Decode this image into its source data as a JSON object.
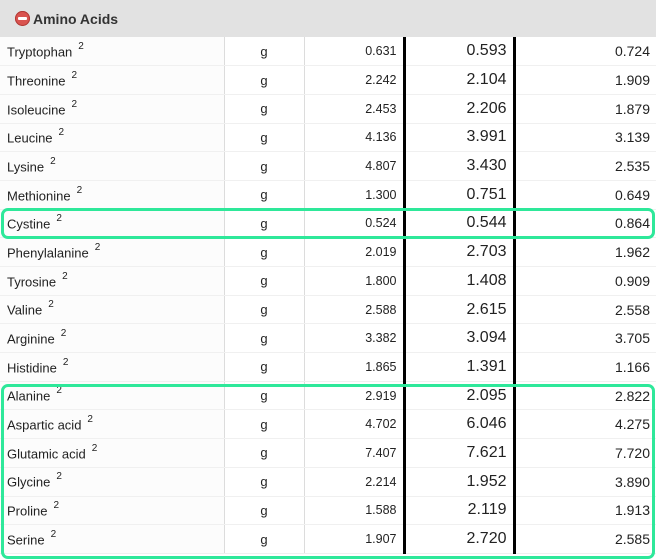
{
  "section": {
    "title": "Amino Acids",
    "toggle_icon": "minus-circle-icon"
  },
  "rows": [
    {
      "name": "Tryptophan",
      "note": "2",
      "unit": "g",
      "v1": "0.631",
      "v2": "0.593",
      "v3": "0.724"
    },
    {
      "name": "Threonine",
      "note": "2",
      "unit": "g",
      "v1": "2.242",
      "v2": "2.104",
      "v3": "1.909"
    },
    {
      "name": "Isoleucine",
      "note": "2",
      "unit": "g",
      "v1": "2.453",
      "v2": "2.206",
      "v3": "1.879"
    },
    {
      "name": "Leucine",
      "note": "2",
      "unit": "g",
      "v1": "4.136",
      "v2": "3.991",
      "v3": "3.139"
    },
    {
      "name": "Lysine",
      "note": "2",
      "unit": "g",
      "v1": "4.807",
      "v2": "3.430",
      "v3": "2.535"
    },
    {
      "name": "Methionine",
      "note": "2",
      "unit": "g",
      "v1": "1.300",
      "v2": "0.751",
      "v3": "0.649"
    },
    {
      "name": "Cystine",
      "note": "2",
      "unit": "g",
      "v1": "0.524",
      "v2": "0.544",
      "v3": "0.864"
    },
    {
      "name": "Phenylalanine",
      "note": "2",
      "unit": "g",
      "v1": "2.019",
      "v2": "2.703",
      "v3": "1.962"
    },
    {
      "name": "Tyrosine",
      "note": "2",
      "unit": "g",
      "v1": "1.800",
      "v2": "1.408",
      "v3": "0.909"
    },
    {
      "name": "Valine",
      "note": "2",
      "unit": "g",
      "v1": "2.588",
      "v2": "2.615",
      "v3": "2.558"
    },
    {
      "name": "Arginine",
      "note": "2",
      "unit": "g",
      "v1": "3.382",
      "v2": "3.094",
      "v3": "3.705"
    },
    {
      "name": "Histidine",
      "note": "2",
      "unit": "g",
      "v1": "1.865",
      "v2": "1.391",
      "v3": "1.166"
    },
    {
      "name": "Alanine",
      "note": "2",
      "unit": "g",
      "v1": "2.919",
      "v2": "2.095",
      "v3": "2.822"
    },
    {
      "name": "Aspartic acid",
      "note": "2",
      "unit": "g",
      "v1": "4.702",
      "v2": "6.046",
      "v3": "4.275"
    },
    {
      "name": "Glutamic acid",
      "note": "2",
      "unit": "g",
      "v1": "7.407",
      "v2": "7.621",
      "v3": "7.720"
    },
    {
      "name": "Glycine",
      "note": "2",
      "unit": "g",
      "v1": "2.214",
      "v2": "1.952",
      "v3": "3.890"
    },
    {
      "name": "Proline",
      "note": "2",
      "unit": "g",
      "v1": "1.588",
      "v2": "2.119",
      "v3": "1.913"
    },
    {
      "name": "Serine",
      "note": "2",
      "unit": "g",
      "v1": "1.907",
      "v2": "2.720",
      "v3": "2.585"
    }
  ],
  "highlight_color": "#2ee89a"
}
